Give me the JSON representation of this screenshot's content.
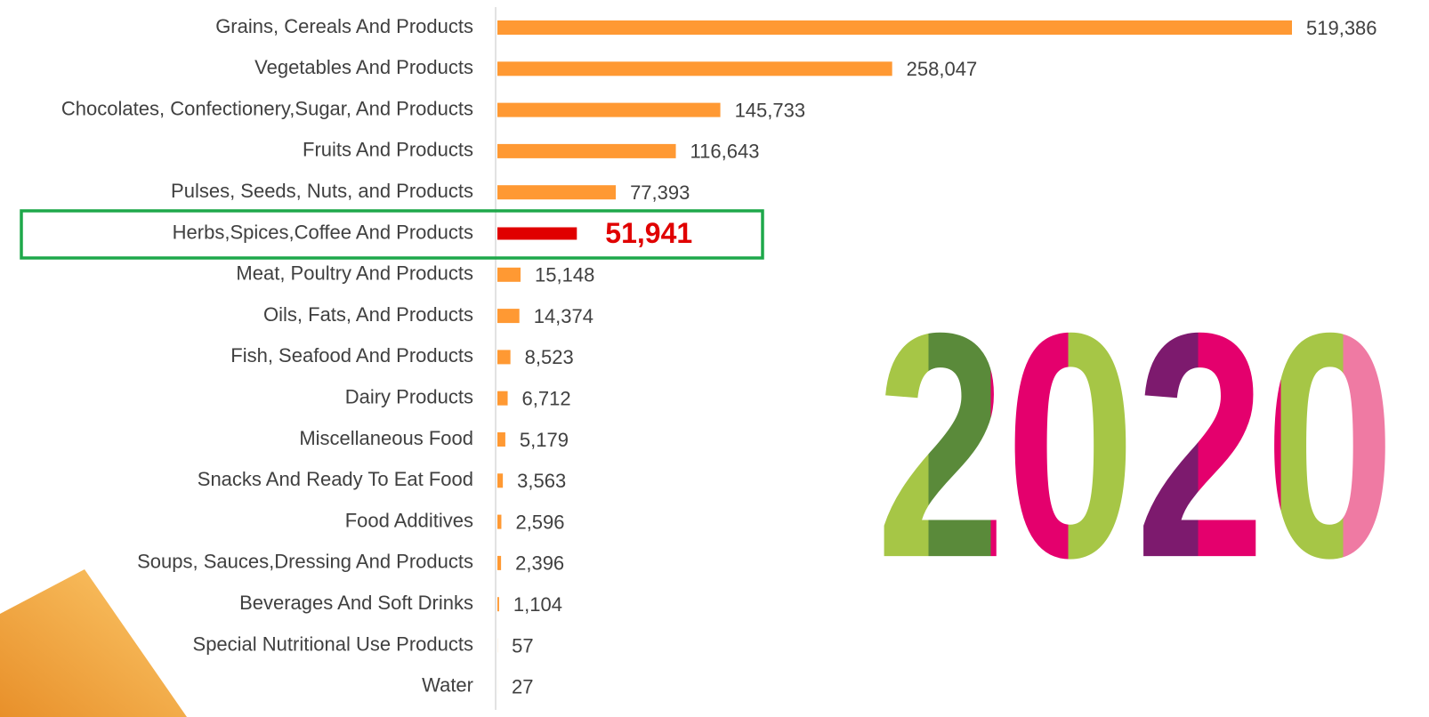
{
  "chart_data": {
    "type": "barh",
    "categories": [
      "Grains, Cereals And Products",
      "Vegetables And Products",
      "Chocolates, Confectionery,Sugar, And Products",
      "Fruits And Products",
      "Pulses, Seeds, Nuts, and Products",
      "Herbs,Spices,Coffee And Products",
      "Meat, Poultry And Products",
      "Oils, Fats, And Products",
      "Fish, Seafood And Products",
      "Dairy Products",
      "Miscellaneous Food",
      "Snacks And Ready To Eat Food",
      "Food Additives",
      "Soups, Sauces,Dressing And Products",
      "Beverages And Soft Drinks",
      "Special Nutritional Use Products",
      "Water"
    ],
    "values": [
      519386,
      258047,
      145733,
      116643,
      77393,
      51941,
      15148,
      14374,
      8523,
      6712,
      5179,
      3563,
      2596,
      2396,
      1104,
      57,
      27
    ],
    "value_labels": [
      "519,386",
      "258,047",
      "145,733",
      "116,643",
      "77,393",
      "51,941",
      "15,148",
      "14,374",
      "8,523",
      "6,712",
      "5,179",
      "3,563",
      "2,596",
      "2,396",
      "1,104",
      "57",
      "27"
    ],
    "color": "#ff9933",
    "colors": [
      "#ff9933",
      "#ff9933",
      "#ff9933",
      "#ff9933",
      "#ff9933",
      "#e00000",
      "#ff9933",
      "#ff9933",
      "#ff9933",
      "#ff9933",
      "#ff9933",
      "#ff9933",
      "#ff9933",
      "#ff9933",
      "#ff9933",
      "#ff9933",
      "#ff9933"
    ],
    "annotation": "2020"
  }
}
